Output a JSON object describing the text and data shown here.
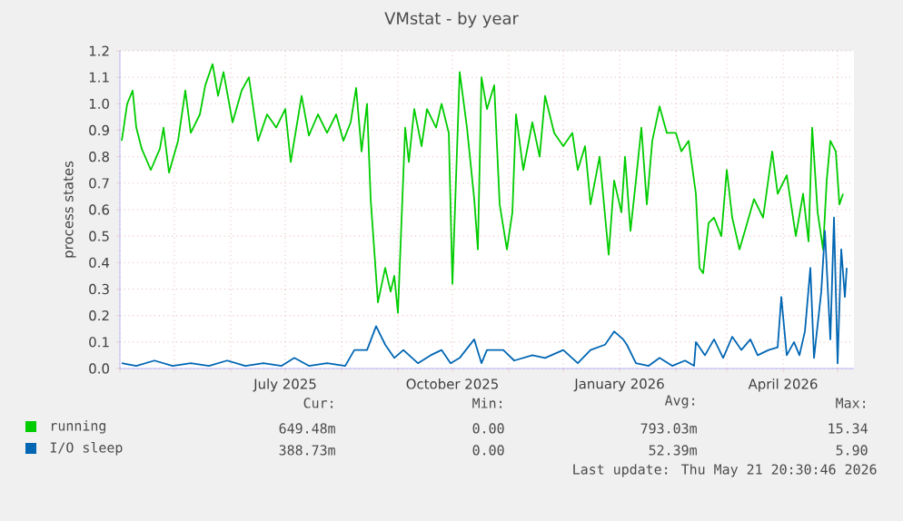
{
  "chart_data": {
    "type": "line",
    "title": "VMstat - by year",
    "ylabel": "process states",
    "xlim": [
      "2025-04-01",
      "2026-05-10"
    ],
    "xticks": [
      {
        "value": "2025-04-01",
        "label": null
      },
      {
        "value": "2025-05-01",
        "label": null
      },
      {
        "value": "2025-06-01",
        "label": null
      },
      {
        "value": "2025-07-01",
        "label": "July 2025"
      },
      {
        "value": "2025-08-01",
        "label": null
      },
      {
        "value": "2025-09-01",
        "label": null
      },
      {
        "value": "2025-10-01",
        "label": "October 2025"
      },
      {
        "value": "2025-11-01",
        "label": null
      },
      {
        "value": "2025-12-01",
        "label": null
      },
      {
        "value": "2026-01-01",
        "label": "January 2026"
      },
      {
        "value": "2026-02-01",
        "label": null
      },
      {
        "value": "2026-03-01",
        "label": null
      },
      {
        "value": "2026-04-01",
        "label": "April 2026"
      },
      {
        "value": "2026-05-01",
        "label": null
      }
    ],
    "ylim": [
      0,
      1.2
    ],
    "yticks": [
      {
        "value": 0,
        "label": "0.0"
      },
      {
        "value": 0.1,
        "label": "0.1"
      },
      {
        "value": 0.2,
        "label": "0.2"
      },
      {
        "value": 0.3,
        "label": "0.3"
      },
      {
        "value": 0.4,
        "label": "0.4"
      },
      {
        "value": 0.5,
        "label": "0.5"
      },
      {
        "value": 0.6,
        "label": "0.6"
      },
      {
        "value": 0.7,
        "label": "0.7"
      },
      {
        "value": 0.8,
        "label": "0.8"
      },
      {
        "value": 0.9,
        "label": "0.9"
      },
      {
        "value": 1.0,
        "label": "1.0"
      },
      {
        "value": 1.1,
        "label": "1.1"
      },
      {
        "value": 1.2,
        "label": "1.2"
      }
    ],
    "grid": true,
    "legend": "bottom",
    "series": [
      {
        "name": "running",
        "color": "#00cc00",
        "x": [
          "2025-04-02",
          "2025-04-05",
          "2025-04-08",
          "2025-04-10",
          "2025-04-13",
          "2025-04-18",
          "2025-04-23",
          "2025-04-25",
          "2025-04-28",
          "2025-05-03",
          "2025-05-07",
          "2025-05-10",
          "2025-05-15",
          "2025-05-18",
          "2025-05-22",
          "2025-05-25",
          "2025-05-28",
          "2025-06-02",
          "2025-06-07",
          "2025-06-11",
          "2025-06-16",
          "2025-06-21",
          "2025-06-26",
          "2025-07-01",
          "2025-07-04",
          "2025-07-10",
          "2025-07-14",
          "2025-07-19",
          "2025-07-24",
          "2025-07-29",
          "2025-08-02",
          "2025-08-06",
          "2025-08-09",
          "2025-08-12",
          "2025-08-15",
          "2025-08-17",
          "2025-08-21",
          "2025-08-25",
          "2025-08-28",
          "2025-08-30",
          "2025-09-01",
          "2025-09-05",
          "2025-09-07",
          "2025-09-10",
          "2025-09-14",
          "2025-09-17",
          "2025-09-22",
          "2025-09-25",
          "2025-09-29",
          "2025-10-01",
          "2025-10-05",
          "2025-10-09",
          "2025-10-13",
          "2025-10-15",
          "2025-10-17",
          "2025-10-20",
          "2025-10-24",
          "2025-10-27",
          "2025-10-31",
          "2025-11-03",
          "2025-11-05",
          "2025-11-09",
          "2025-11-14",
          "2025-11-18",
          "2025-11-21",
          "2025-11-26",
          "2025-12-01",
          "2025-12-06",
          "2025-12-09",
          "2025-12-13",
          "2025-12-16",
          "2025-12-21",
          "2025-12-26",
          "2025-12-29",
          "2026-01-02",
          "2026-01-04",
          "2026-01-07",
          "2026-01-10",
          "2026-01-13",
          "2026-01-16",
          "2026-01-19",
          "2026-01-23",
          "2026-01-27",
          "2026-02-01",
          "2026-02-04",
          "2026-02-08",
          "2026-02-12",
          "2026-02-14",
          "2026-02-16",
          "2026-02-19",
          "2026-02-22",
          "2026-02-26",
          "2026-03-01",
          "2026-03-04",
          "2026-03-08",
          "2026-03-11",
          "2026-03-16",
          "2026-03-21",
          "2026-03-26",
          "2026-03-29",
          "2026-04-03",
          "2026-04-08",
          "2026-04-12",
          "2026-04-15",
          "2026-04-17",
          "2026-04-20",
          "2026-04-23",
          "2026-04-25",
          "2026-04-27",
          "2026-04-30",
          "2026-05-02",
          "2026-05-04"
        ],
        "values": [
          0.86,
          1.0,
          1.05,
          0.91,
          0.83,
          0.75,
          0.83,
          0.91,
          0.74,
          0.86,
          1.05,
          0.89,
          0.96,
          1.07,
          1.15,
          1.03,
          1.12,
          0.93,
          1.05,
          1.1,
          0.86,
          0.96,
          0.91,
          0.98,
          0.78,
          1.03,
          0.88,
          0.96,
          0.89,
          0.96,
          0.86,
          0.93,
          1.06,
          0.82,
          1.0,
          0.64,
          0.25,
          0.38,
          0.29,
          0.35,
          0.21,
          0.91,
          0.78,
          0.98,
          0.84,
          0.98,
          0.91,
          1.0,
          0.89,
          0.32,
          1.12,
          0.91,
          0.64,
          0.45,
          1.1,
          0.98,
          1.07,
          0.62,
          0.45,
          0.59,
          0.96,
          0.75,
          0.93,
          0.8,
          1.03,
          0.89,
          0.84,
          0.89,
          0.75,
          0.84,
          0.62,
          0.8,
          0.43,
          0.71,
          0.59,
          0.8,
          0.52,
          0.71,
          0.91,
          0.62,
          0.86,
          0.99,
          0.89,
          0.89,
          0.82,
          0.86,
          0.66,
          0.38,
          0.36,
          0.55,
          0.57,
          0.5,
          0.75,
          0.57,
          0.45,
          0.52,
          0.64,
          0.57,
          0.82,
          0.66,
          0.73,
          0.5,
          0.66,
          0.48,
          0.91,
          0.59,
          0.45,
          0.71,
          0.86,
          0.82,
          0.62,
          0.66
        ]
      },
      {
        "name": "I/O sleep",
        "color": "#0066b3",
        "x": [
          "2025-04-02",
          "2025-04-10",
          "2025-04-20",
          "2025-04-30",
          "2025-05-10",
          "2025-05-20",
          "2025-05-30",
          "2025-06-09",
          "2025-06-19",
          "2025-06-29",
          "2025-07-06",
          "2025-07-14",
          "2025-07-24",
          "2025-08-03",
          "2025-08-08",
          "2025-08-15",
          "2025-08-20",
          "2025-08-25",
          "2025-08-30",
          "2025-09-04",
          "2025-09-12",
          "2025-09-19",
          "2025-09-25",
          "2025-09-30",
          "2025-10-05",
          "2025-10-13",
          "2025-10-17",
          "2025-10-20",
          "2025-10-29",
          "2025-11-04",
          "2025-11-14",
          "2025-11-21",
          "2025-12-01",
          "2025-12-09",
          "2025-12-16",
          "2025-12-24",
          "2025-12-29",
          "2026-01-03",
          "2026-01-05",
          "2026-01-10",
          "2026-01-17",
          "2026-01-23",
          "2026-01-30",
          "2026-02-06",
          "2026-02-11",
          "2026-02-12",
          "2026-02-17",
          "2026-02-22",
          "2026-02-27",
          "2026-03-04",
          "2026-03-09",
          "2026-03-14",
          "2026-03-18",
          "2026-03-24",
          "2026-03-29",
          "2026-03-31",
          "2026-04-03",
          "2026-04-07",
          "2026-04-10",
          "2026-04-13",
          "2026-04-16",
          "2026-04-18",
          "2026-04-22",
          "2026-04-24",
          "2026-04-27",
          "2026-04-29",
          "2026-05-01",
          "2026-05-03",
          "2026-05-05",
          "2026-05-06"
        ],
        "values": [
          0.02,
          0.01,
          0.03,
          0.01,
          0.02,
          0.01,
          0.03,
          0.01,
          0.02,
          0.01,
          0.04,
          0.01,
          0.02,
          0.01,
          0.07,
          0.07,
          0.16,
          0.09,
          0.04,
          0.07,
          0.02,
          0.05,
          0.07,
          0.02,
          0.04,
          0.11,
          0.02,
          0.07,
          0.07,
          0.03,
          0.05,
          0.04,
          0.07,
          0.02,
          0.07,
          0.09,
          0.14,
          0.11,
          0.09,
          0.02,
          0.01,
          0.04,
          0.01,
          0.03,
          0.01,
          0.1,
          0.05,
          0.11,
          0.04,
          0.12,
          0.07,
          0.11,
          0.05,
          0.07,
          0.08,
          0.27,
          0.05,
          0.1,
          0.05,
          0.14,
          0.38,
          0.04,
          0.29,
          0.52,
          0.11,
          0.57,
          0.02,
          0.45,
          0.27,
          0.38
        ]
      }
    ],
    "annotations": [
      "Cur:",
      "Min:",
      "Avg:",
      "Max:",
      "649.48m",
      "0.00",
      "793.03m",
      "15.34",
      "388.73m",
      "0.00",
      "52.39m",
      "5.90",
      "Last update: Thu May 21 20:30:46 2026"
    ]
  }
}
